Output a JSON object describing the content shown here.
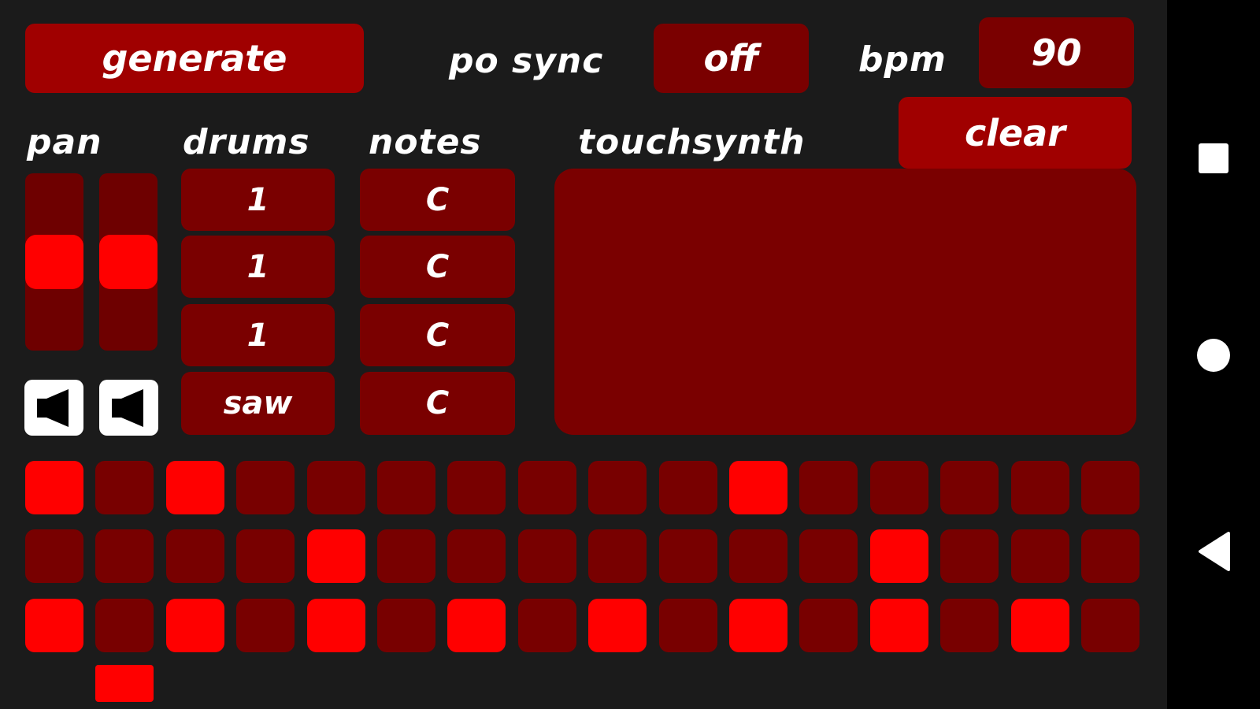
{
  "header": {
    "generate_label": "generate",
    "po_sync_label": "po sync",
    "po_sync_value": "off",
    "bpm_label": "bpm",
    "bpm_value": "90",
    "clear_label": "clear"
  },
  "sections": {
    "pan": "pan",
    "drums": "drums",
    "notes": "notes",
    "touchsynth": "touchsynth"
  },
  "pan": {
    "left_level": 0.5,
    "right_level": 0.5
  },
  "drums": [
    "1",
    "1",
    "1",
    "saw"
  ],
  "notes": [
    "C",
    "C",
    "C",
    "C"
  ],
  "sequencer": {
    "rows": [
      [
        1,
        0,
        1,
        0,
        0,
        0,
        0,
        0,
        0,
        0,
        1,
        0,
        0,
        0,
        0,
        0
      ],
      [
        0,
        0,
        0,
        0,
        1,
        0,
        0,
        0,
        0,
        0,
        0,
        0,
        1,
        0,
        0,
        0
      ],
      [
        1,
        0,
        1,
        0,
        1,
        0,
        1,
        0,
        1,
        0,
        1,
        0,
        1,
        0,
        1,
        0
      ]
    ],
    "playhead_step": 1
  },
  "colors": {
    "background": "#1b1b1b",
    "accent": "#a00000",
    "inactive": "#780000",
    "active": "#ff0000"
  },
  "icons": {
    "mute": "speaker-muted-icon",
    "nav": [
      "recents-square-icon",
      "home-circle-icon",
      "back-triangle-icon"
    ]
  }
}
